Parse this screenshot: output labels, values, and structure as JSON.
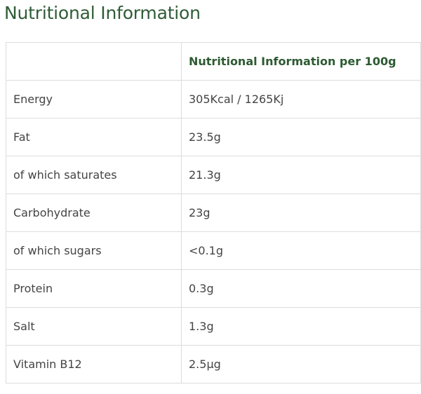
{
  "header": {
    "title": "Nutritional Information"
  },
  "table": {
    "column_header": "Nutritional Information per 100g",
    "rows": [
      [
        "Energy",
        "305Kcal / 1265Kj"
      ],
      [
        "Fat",
        "23.5g"
      ],
      [
        "of which saturates",
        "21.3g"
      ],
      [
        "Carbohydrate",
        "23g"
      ],
      [
        "of which sugars",
        "<0.1g"
      ],
      [
        "Protein",
        "0.3g"
      ],
      [
        "Salt",
        "1.3g"
      ],
      [
        "Vitamin B12",
        "2.5µg"
      ]
    ]
  }
}
